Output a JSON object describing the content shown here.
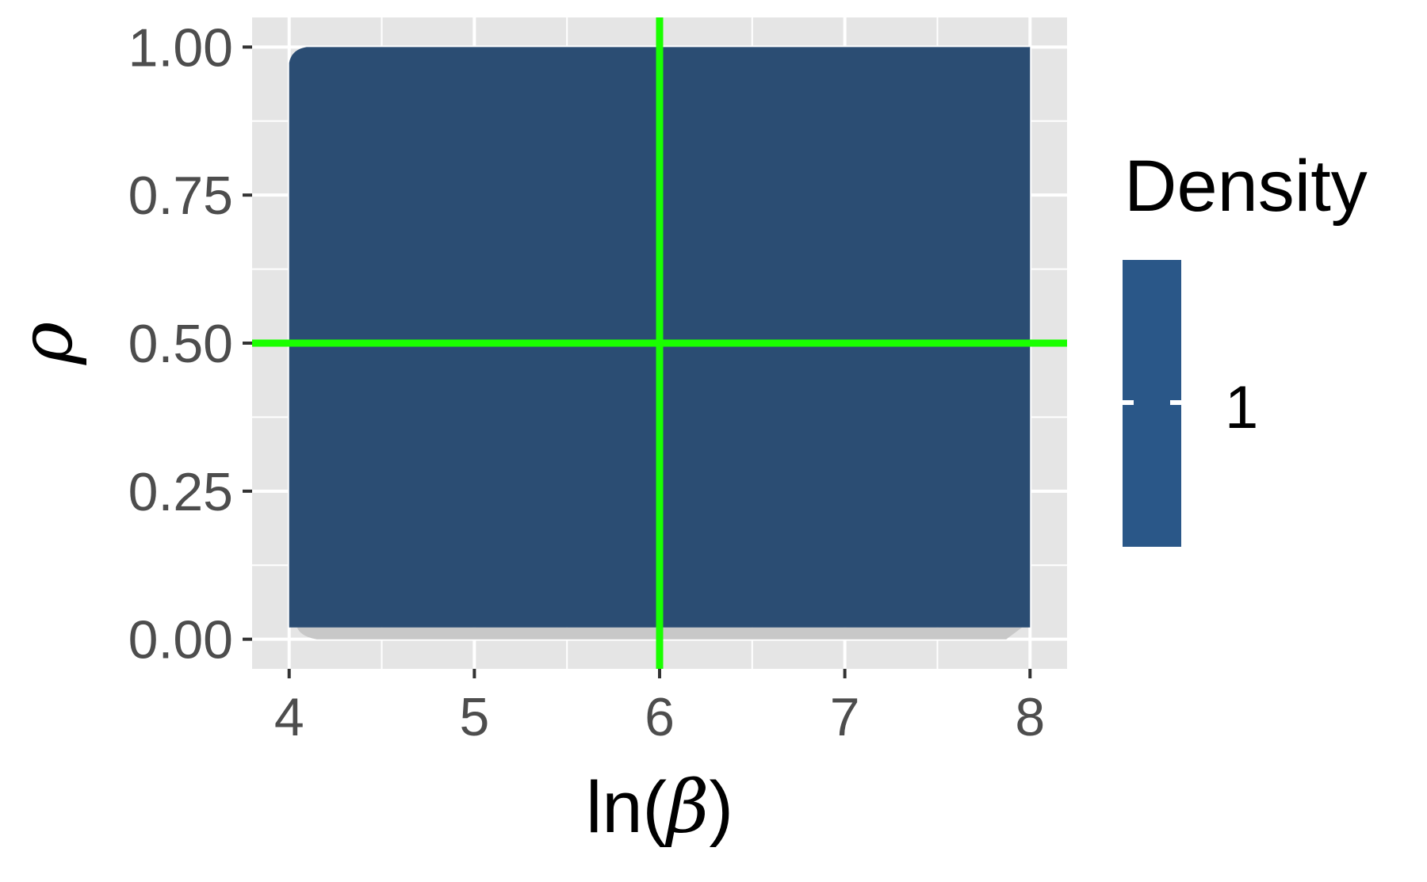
{
  "chart_data": {
    "type": "heatmap",
    "xlabel": "ln(β)",
    "xlabel_parts": {
      "prefix": "ln(",
      "symbol": "β",
      "suffix": ")"
    },
    "ylabel": "ρ",
    "x_ticks": [
      4,
      5,
      6,
      7,
      8
    ],
    "x_tick_labels": [
      "4",
      "5",
      "6",
      "7",
      "8"
    ],
    "y_ticks": [
      0.0,
      0.25,
      0.5,
      0.75,
      1.0
    ],
    "y_tick_labels": [
      "0.00",
      "0.25",
      "0.50",
      "0.75",
      "1.00"
    ],
    "xlim": [
      3.8,
      8.2
    ],
    "ylim": [
      -0.05,
      1.05
    ],
    "grid": true,
    "density_region": {
      "x": [
        4,
        8
      ],
      "y": [
        0.02,
        1.0
      ],
      "density": 1
    },
    "reference_lines": {
      "vertical_x": 6,
      "horizontal_y": 0.5
    },
    "legend": {
      "title": "Density",
      "placement": "right",
      "entries": [
        {
          "label": "1",
          "value": 1
        }
      ]
    },
    "colors": {
      "panel_background": "#e5e5e5",
      "grid": "#ffffff",
      "density_fill": "#2b4d73",
      "legend_fill": "#2a5788",
      "shadow": "#c8c8c8",
      "reference_line": "#1aff00"
    }
  }
}
